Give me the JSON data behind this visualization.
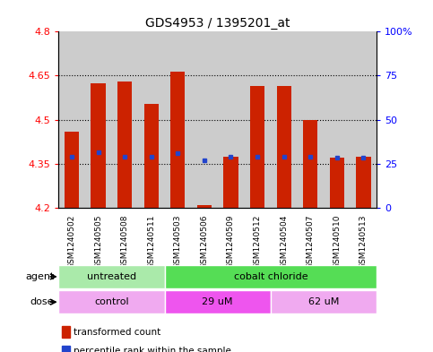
{
  "title": "GDS4953 / 1395201_at",
  "samples": [
    "GSM1240502",
    "GSM1240505",
    "GSM1240508",
    "GSM1240511",
    "GSM1240503",
    "GSM1240506",
    "GSM1240509",
    "GSM1240512",
    "GSM1240504",
    "GSM1240507",
    "GSM1240510",
    "GSM1240513"
  ],
  "red_values": [
    4.46,
    4.625,
    4.63,
    4.555,
    4.665,
    4.21,
    4.375,
    4.615,
    4.615,
    4.5,
    4.37,
    4.375
  ],
  "blue_values": [
    4.375,
    4.39,
    4.375,
    4.375,
    4.385,
    4.36,
    4.375,
    4.375,
    4.375,
    4.375,
    4.37,
    4.37
  ],
  "ymin": 4.2,
  "ymax": 4.8,
  "yticks": [
    4.2,
    4.35,
    4.5,
    4.65,
    4.8
  ],
  "ytick_labels": [
    "4.2",
    "4.35",
    "4.5",
    "4.65",
    "4.8"
  ],
  "y2ticks": [
    0,
    25,
    50,
    75,
    100
  ],
  "y2tick_labels": [
    "0",
    "25",
    "50",
    "75",
    "100%"
  ],
  "agent_groups": [
    {
      "label": "untreated",
      "start": 0,
      "end": 4,
      "color": "#aaeaaa"
    },
    {
      "label": "cobalt chloride",
      "start": 4,
      "end": 12,
      "color": "#55dd55"
    }
  ],
  "dose_groups": [
    {
      "label": "control",
      "start": 0,
      "end": 4,
      "color": "#f0aaf0"
    },
    {
      "label": "29 uM",
      "start": 4,
      "end": 8,
      "color": "#ee55ee"
    },
    {
      "label": "62 uM",
      "start": 8,
      "end": 12,
      "color": "#f0aaf0"
    }
  ],
  "bar_color": "#cc2200",
  "blue_color": "#2244cc",
  "bg_color": "#ffffff",
  "col_bg": "#cccccc",
  "bar_width": 0.55,
  "legend_items": [
    {
      "label": "transformed count",
      "color": "#cc2200"
    },
    {
      "label": "percentile rank within the sample",
      "color": "#2244cc"
    }
  ]
}
